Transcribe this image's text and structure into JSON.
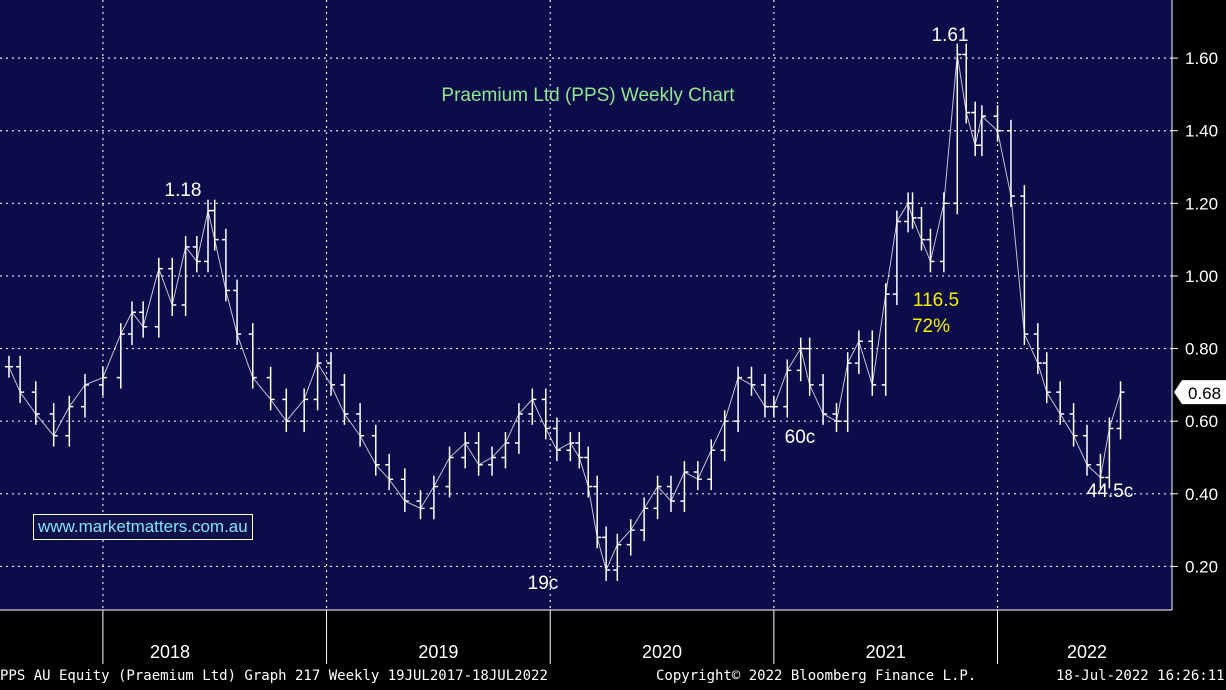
{
  "chart_data": {
    "type": "line",
    "title": "Praemium Ltd (PPS) Weekly Chart",
    "x_axis": {
      "labels": [
        "2018",
        "2019",
        "2020",
        "2021",
        "2022"
      ]
    },
    "y_axis": {
      "range": [
        0.08,
        1.76
      ],
      "ticks": [
        "0.20",
        "0.40",
        "0.60",
        "0.80",
        "1.00",
        "1.20",
        "1.40",
        "1.60"
      ]
    },
    "grid": true,
    "current_price_label": "0.68",
    "series": [
      {
        "x": [
          2017.58,
          2017.63,
          2017.7,
          2017.78,
          2017.85,
          2017.92,
          2018.0,
          2018.08,
          2018.13,
          2018.18,
          2018.25,
          2018.31,
          2018.37,
          2018.42,
          2018.47,
          2018.5,
          2018.55,
          2018.6,
          2018.67,
          2018.75,
          2018.82,
          2018.9,
          2018.96,
          2019.02,
          2019.08,
          2019.15,
          2019.22,
          2019.28,
          2019.35,
          2019.42,
          2019.48,
          2019.55,
          2019.62,
          2019.68,
          2019.74,
          2019.8,
          2019.86,
          2019.92,
          2019.98,
          2020.03,
          2020.09,
          2020.13,
          2020.17,
          2020.21,
          2020.25,
          2020.3,
          2020.36,
          2020.42,
          2020.48,
          2020.54,
          2020.6,
          2020.66,
          2020.72,
          2020.78,
          2020.84,
          2020.9,
          2020.96,
          2021.0,
          2021.06,
          2021.12,
          2021.16,
          2021.22,
          2021.28,
          2021.33,
          2021.38,
          2021.44,
          2021.5,
          2021.55,
          2021.6,
          2021.62,
          2021.66,
          2021.7,
          2021.76,
          2021.82,
          2021.86,
          2021.9,
          2021.93,
          2022.0,
          2022.06,
          2022.12,
          2022.18,
          2022.22,
          2022.28,
          2022.34,
          2022.4,
          2022.46,
          2022.5,
          2022.55
        ],
        "values": [
          0.75,
          0.68,
          0.62,
          0.56,
          0.64,
          0.7,
          0.72,
          0.84,
          0.9,
          0.86,
          1.02,
          0.92,
          1.08,
          1.04,
          1.18,
          1.1,
          0.96,
          0.84,
          0.72,
          0.66,
          0.6,
          0.66,
          0.76,
          0.7,
          0.62,
          0.56,
          0.48,
          0.44,
          0.38,
          0.36,
          0.42,
          0.5,
          0.54,
          0.48,
          0.5,
          0.54,
          0.62,
          0.66,
          0.58,
          0.52,
          0.54,
          0.5,
          0.42,
          0.28,
          0.19,
          0.26,
          0.3,
          0.36,
          0.42,
          0.38,
          0.46,
          0.44,
          0.52,
          0.6,
          0.72,
          0.7,
          0.64,
          0.64,
          0.74,
          0.8,
          0.7,
          0.62,
          0.6,
          0.76,
          0.82,
          0.7,
          0.95,
          1.15,
          1.2,
          1.16,
          1.1,
          1.04,
          1.2,
          1.61,
          1.45,
          1.36,
          1.44,
          1.4,
          1.22,
          0.84,
          0.76,
          0.68,
          0.62,
          0.56,
          0.48,
          0.445,
          0.58,
          0.68
        ]
      }
    ],
    "annotations": [
      {
        "text": "1.18"
      },
      {
        "text": "19c"
      },
      {
        "text": "60c"
      },
      {
        "text": "1.61"
      },
      {
        "text": "116.5"
      },
      {
        "text": "72%"
      },
      {
        "text": "44.5c"
      }
    ]
  },
  "watermark": {
    "url": "www.marketmatters.com.au"
  },
  "footer": {
    "security": "PPS AU Equity (Praemium Ltd) Graph 217  Weekly 19JUL2017-18JUL2022",
    "copyright": "Copyright© 2022 Bloomberg Finance L.P.",
    "timestamp": "18-Jul-2022 16:26:11"
  },
  "colors": {
    "background": "#0c0c4a",
    "price": "#ffffff",
    "title": "#8ee88e",
    "highlight": "#f6f000",
    "grid": "#ffffff"
  }
}
